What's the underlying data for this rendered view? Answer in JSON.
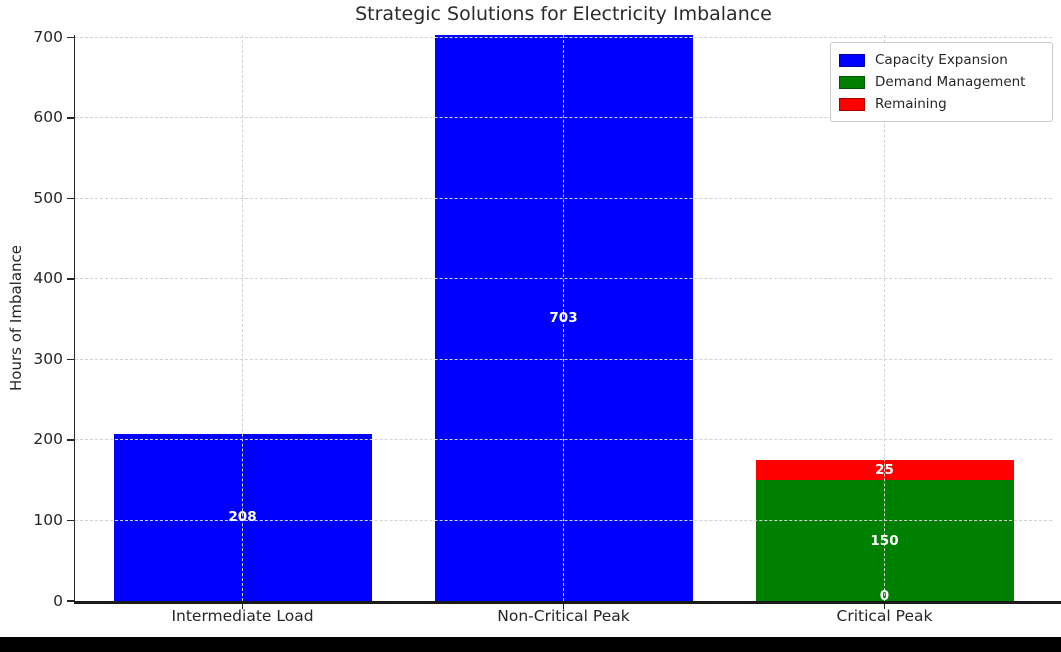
{
  "chart_data": {
    "type": "bar",
    "stacked": true,
    "title": "Strategic Solutions for Electricity Imbalance",
    "xlabel": "",
    "ylabel": "Hours of Imbalance",
    "categories": [
      "Intermediate Load",
      "Non-Critical Peak",
      "Critical Peak"
    ],
    "series": [
      {
        "name": "Capacity Expansion",
        "color": "#0000ff",
        "values": [
          208,
          703,
          0
        ]
      },
      {
        "name": "Demand Management",
        "color": "#008000",
        "values": [
          0,
          0,
          150
        ]
      },
      {
        "name": "Remaining",
        "color": "#ff0000",
        "values": [
          0,
          0,
          25
        ]
      }
    ],
    "value_labels": [
      {
        "category_index": 0,
        "text": "208",
        "y_value": 104
      },
      {
        "category_index": 1,
        "text": "703",
        "y_value": 351.5
      },
      {
        "category_index": 2,
        "text": "150",
        "y_value": 75
      },
      {
        "category_index": 2,
        "text": "25",
        "y_value": 162.5
      },
      {
        "category_index": 2,
        "text": "0",
        "y_value": 0
      }
    ],
    "value_label_color": "#ffffff",
    "ylim": [
      0,
      703
    ],
    "yticks": [
      0,
      100,
      200,
      300,
      400,
      500,
      600,
      700
    ],
    "grid": true,
    "grid_color": "#d3d3d3",
    "axis_color": "#262626",
    "legend_position": "upper right"
  }
}
